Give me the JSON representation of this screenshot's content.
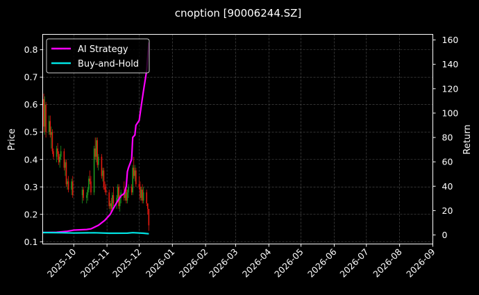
{
  "chart_data": {
    "type": "candlestick+line",
    "title": "cnoption [90006244.SZ]",
    "ylabel_left": "Price",
    "ylabel_right": "Return",
    "xlim": [
      "2025-09-02",
      "2026-09-01"
    ],
    "ylim_left": [
      0.092,
      0.856
    ],
    "ylim_right": [
      -7.4,
      164.6
    ],
    "left_ticks": [
      "0.1",
      "0.2",
      "0.3",
      "0.4",
      "0.5",
      "0.6",
      "0.7",
      "0.8"
    ],
    "right_ticks": [
      "0",
      "20",
      "40",
      "60",
      "80",
      "100",
      "120",
      "140",
      "160"
    ],
    "x_ticks": [
      "2025-10",
      "2025-11",
      "2025-12",
      "2026-01",
      "2026-02",
      "2026-03",
      "2026-04",
      "2026-05",
      "2026-06",
      "2026-07",
      "2026-08",
      "2026-09"
    ],
    "grid": true,
    "legend_position": "top-left",
    "colors": {
      "up": "#1f9a1f",
      "down": "#e8190f",
      "strategy": "#ff00ff",
      "buyhold": "#00e5e5",
      "grid": "#555555"
    },
    "legend": [
      "AI Strategy",
      "Buy-and-Hold"
    ],
    "ohlc": [
      [
        "2025-09-02",
        0.6,
        0.84,
        0.55,
        0.62
      ],
      [
        "2025-09-03",
        0.62,
        0.64,
        0.5,
        0.52
      ],
      [
        "2025-09-04",
        0.52,
        0.63,
        0.49,
        0.6
      ],
      [
        "2025-09-05",
        0.6,
        0.61,
        0.48,
        0.5
      ],
      [
        "2025-09-08",
        0.5,
        0.56,
        0.49,
        0.54
      ],
      [
        "2025-09-09",
        0.54,
        0.56,
        0.48,
        0.49
      ],
      [
        "2025-09-10",
        0.49,
        0.52,
        0.44,
        0.5
      ],
      [
        "2025-09-11",
        0.5,
        0.51,
        0.42,
        0.43
      ],
      [
        "2025-09-12",
        0.43,
        0.44,
        0.4,
        0.41
      ],
      [
        "2025-09-15",
        0.41,
        0.45,
        0.39,
        0.44
      ],
      [
        "2025-09-16",
        0.44,
        0.46,
        0.4,
        0.42
      ],
      [
        "2025-09-17",
        0.42,
        0.43,
        0.38,
        0.39
      ],
      [
        "2025-09-18",
        0.39,
        0.42,
        0.37,
        0.41
      ],
      [
        "2025-09-19",
        0.41,
        0.45,
        0.4,
        0.43
      ],
      [
        "2025-09-22",
        0.43,
        0.44,
        0.36,
        0.37
      ],
      [
        "2025-09-23",
        0.37,
        0.4,
        0.34,
        0.39
      ],
      [
        "2025-09-24",
        0.39,
        0.4,
        0.3,
        0.31
      ],
      [
        "2025-09-25",
        0.31,
        0.33,
        0.29,
        0.32
      ],
      [
        "2025-09-26",
        0.32,
        0.34,
        0.28,
        0.29
      ],
      [
        "2025-09-29",
        0.29,
        0.33,
        0.27,
        0.32
      ],
      [
        "2025-09-30",
        0.32,
        0.34,
        0.26,
        0.27
      ],
      [
        "2025-10-09",
        0.27,
        0.3,
        0.24,
        0.29
      ],
      [
        "2025-10-10",
        0.29,
        0.3,
        0.25,
        0.26
      ],
      [
        "2025-10-13",
        0.26,
        0.28,
        0.24,
        0.27
      ],
      [
        "2025-10-14",
        0.27,
        0.3,
        0.25,
        0.29
      ],
      [
        "2025-10-15",
        0.29,
        0.34,
        0.28,
        0.33
      ],
      [
        "2025-10-16",
        0.33,
        0.36,
        0.31,
        0.32
      ],
      [
        "2025-10-17",
        0.32,
        0.34,
        0.27,
        0.28
      ],
      [
        "2025-10-20",
        0.28,
        0.45,
        0.27,
        0.44
      ],
      [
        "2025-10-21",
        0.44,
        0.48,
        0.4,
        0.41
      ],
      [
        "2025-10-22",
        0.41,
        0.48,
        0.39,
        0.47
      ],
      [
        "2025-10-23",
        0.47,
        0.48,
        0.37,
        0.38
      ],
      [
        "2025-10-24",
        0.38,
        0.42,
        0.36,
        0.41
      ],
      [
        "2025-10-27",
        0.41,
        0.42,
        0.33,
        0.34
      ],
      [
        "2025-10-28",
        0.34,
        0.37,
        0.32,
        0.36
      ],
      [
        "2025-10-29",
        0.36,
        0.37,
        0.29,
        0.3
      ],
      [
        "2025-10-30",
        0.3,
        0.32,
        0.28,
        0.29
      ],
      [
        "2025-10-31",
        0.29,
        0.31,
        0.27,
        0.28
      ],
      [
        "2025-11-03",
        0.28,
        0.29,
        0.22,
        0.23
      ],
      [
        "2025-11-04",
        0.23,
        0.25,
        0.21,
        0.24
      ],
      [
        "2025-11-05",
        0.24,
        0.26,
        0.21,
        0.22
      ],
      [
        "2025-11-06",
        0.22,
        0.28,
        0.21,
        0.27
      ],
      [
        "2025-11-07",
        0.27,
        0.3,
        0.23,
        0.24
      ],
      [
        "2025-11-10",
        0.24,
        0.27,
        0.22,
        0.26
      ],
      [
        "2025-11-11",
        0.26,
        0.31,
        0.25,
        0.3
      ],
      [
        "2025-11-12",
        0.3,
        0.31,
        0.22,
        0.23
      ],
      [
        "2025-11-13",
        0.23,
        0.27,
        0.21,
        0.26
      ],
      [
        "2025-11-14",
        0.26,
        0.29,
        0.24,
        0.28
      ],
      [
        "2025-11-17",
        0.28,
        0.32,
        0.25,
        0.26
      ],
      [
        "2025-11-18",
        0.26,
        0.3,
        0.25,
        0.29
      ],
      [
        "2025-11-19",
        0.29,
        0.3,
        0.24,
        0.25
      ],
      [
        "2025-11-20",
        0.25,
        0.29,
        0.24,
        0.28
      ],
      [
        "2025-11-21",
        0.28,
        0.31,
        0.26,
        0.3
      ],
      [
        "2025-11-24",
        0.3,
        0.31,
        0.27,
        0.28
      ],
      [
        "2025-11-25",
        0.28,
        0.38,
        0.27,
        0.37
      ],
      [
        "2025-11-26",
        0.37,
        0.41,
        0.33,
        0.34
      ],
      [
        "2025-11-27",
        0.34,
        0.38,
        0.32,
        0.36
      ],
      [
        "2025-11-28",
        0.36,
        0.37,
        0.3,
        0.31
      ],
      [
        "2025-12-01",
        0.31,
        0.34,
        0.29,
        0.3
      ],
      [
        "2025-12-02",
        0.3,
        0.32,
        0.25,
        0.26
      ],
      [
        "2025-12-03",
        0.26,
        0.3,
        0.25,
        0.29
      ],
      [
        "2025-12-04",
        0.29,
        0.31,
        0.24,
        0.25
      ],
      [
        "2025-12-05",
        0.25,
        0.3,
        0.24,
        0.28
      ],
      [
        "2025-12-08",
        0.28,
        0.29,
        0.23,
        0.24
      ],
      [
        "2025-12-09",
        0.24,
        0.24,
        0.2,
        0.22
      ],
      [
        "2025-12-10",
        0.22,
        0.22,
        0.14,
        0.16
      ]
    ],
    "series": [
      {
        "name": "AI Strategy",
        "points": [
          [
            "2025-09-02",
            2
          ],
          [
            "2025-09-15",
            2.2
          ],
          [
            "2025-09-25",
            3
          ],
          [
            "2025-10-01",
            4
          ],
          [
            "2025-10-13",
            4.5
          ],
          [
            "2025-10-17",
            5
          ],
          [
            "2025-10-24",
            8
          ],
          [
            "2025-10-30",
            12
          ],
          [
            "2025-11-04",
            17
          ],
          [
            "2025-11-07",
            22
          ],
          [
            "2025-11-11",
            28
          ],
          [
            "2025-11-14",
            32
          ],
          [
            "2025-11-17",
            34
          ],
          [
            "2025-11-19",
            40
          ],
          [
            "2025-11-20",
            52
          ],
          [
            "2025-11-21",
            55
          ],
          [
            "2025-11-24",
            62
          ],
          [
            "2025-11-25",
            80
          ],
          [
            "2025-11-27",
            82
          ],
          [
            "2025-11-28",
            90
          ],
          [
            "2025-12-01",
            94
          ],
          [
            "2025-12-03",
            106
          ],
          [
            "2025-12-05",
            118
          ],
          [
            "2025-12-08",
            135
          ],
          [
            "2025-12-10",
            158
          ]
        ]
      },
      {
        "name": "Buy-and-Hold",
        "points": [
          [
            "2025-09-02",
            2
          ],
          [
            "2025-09-20",
            1.8
          ],
          [
            "2025-10-01",
            1.6
          ],
          [
            "2025-10-20",
            1.8
          ],
          [
            "2025-11-03",
            1.4
          ],
          [
            "2025-11-20",
            1.5
          ],
          [
            "2025-11-25",
            1.9
          ],
          [
            "2025-12-05",
            1.4
          ],
          [
            "2025-12-10",
            1.0
          ]
        ]
      }
    ]
  }
}
